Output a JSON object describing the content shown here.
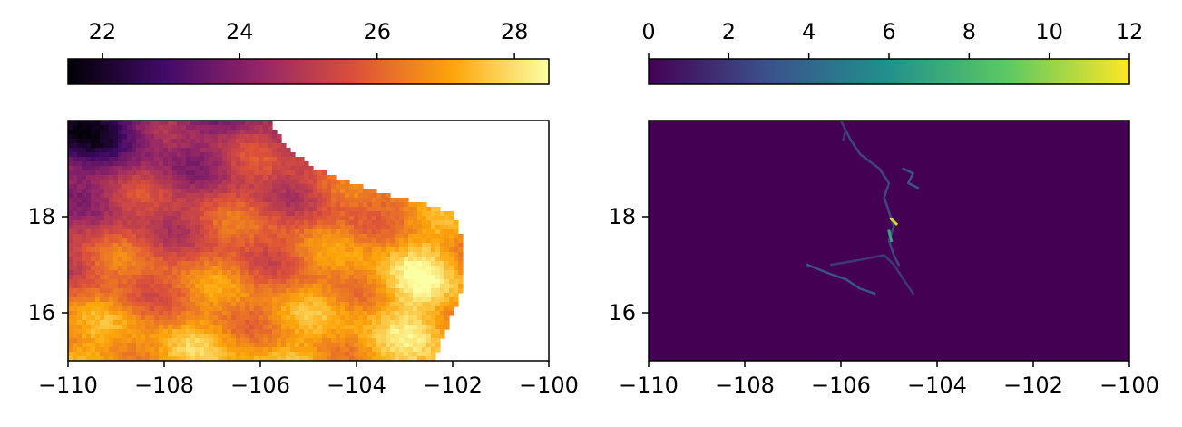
{
  "chart_data": [
    {
      "type": "heatmap",
      "title": "",
      "xlabel": "",
      "ylabel": "",
      "xlim": [
        -110,
        -100
      ],
      "ylim": [
        15,
        20
      ],
      "x_ticks": [
        -110,
        -108,
        -106,
        -104,
        -102,
        -100
      ],
      "x_tick_labels": [
        "−110",
        "−108",
        "−106",
        "−104",
        "−102",
        "−100"
      ],
      "y_ticks": [
        16,
        18
      ],
      "y_tick_labels": [
        "16",
        "18"
      ],
      "colormap": "inferno",
      "colormap_stops": [
        "#000004",
        "#420a68",
        "#932667",
        "#dd513a",
        "#fca50a",
        "#fcffa4"
      ],
      "missing_color": "#ffffff",
      "colorbar": {
        "placement": "top",
        "range": [
          21.5,
          28.5
        ],
        "ticks": [
          22,
          24,
          26,
          28
        ],
        "tick_labels": [
          "22",
          "24",
          "26",
          "28"
        ]
      },
      "approx_field": {
        "coast_lon_by_lat": [
          [
            20,
            -105.8
          ],
          [
            19.5,
            -105.5
          ],
          [
            19,
            -104.9
          ],
          [
            18.5,
            -103.5
          ],
          [
            18.1,
            -102.0
          ],
          [
            17.5,
            -101.8
          ],
          [
            17,
            -101.8
          ],
          [
            16.5,
            -101.8
          ],
          [
            16,
            -102.0
          ],
          [
            15.5,
            -102.2
          ],
          [
            15,
            -102.4
          ]
        ],
        "cold_core_lat": 19.8,
        "cold_core_lon": -109.8,
        "warm_core_lat": 16.8,
        "warm_core_lon": -102.9,
        "min_value": 21.6,
        "max_value": 28.5
      }
    },
    {
      "type": "heatmap",
      "title": "",
      "xlabel": "",
      "ylabel": "",
      "xlim": [
        -110,
        -100
      ],
      "ylim": [
        15,
        20
      ],
      "x_ticks": [
        -110,
        -108,
        -106,
        -104,
        -102,
        -100
      ],
      "x_tick_labels": [
        "−110",
        "−108",
        "−106",
        "−104",
        "−102",
        "−100"
      ],
      "y_ticks": [
        16,
        18
      ],
      "y_tick_labels": [
        "16",
        "18"
      ],
      "colormap": "viridis",
      "colormap_stops": [
        "#440154",
        "#3b528b",
        "#21918c",
        "#5ec962",
        "#fde725"
      ],
      "colorbar": {
        "placement": "top",
        "range": [
          0,
          12
        ],
        "ticks": [
          0,
          2,
          4,
          6,
          8,
          10,
          12
        ],
        "tick_labels": [
          "0",
          "2",
          "4",
          "6",
          "8",
          "10",
          "12"
        ]
      },
      "background_value": 0,
      "tracks": [
        {
          "values": 2.5,
          "points": [
            [
              -106.0,
              20.0
            ],
            [
              -105.8,
              19.6
            ],
            [
              -105.6,
              19.3
            ],
            [
              -105.2,
              19.0
            ],
            [
              -105.0,
              18.7
            ],
            [
              -105.1,
              18.4
            ],
            [
              -105.0,
              18.1
            ],
            [
              -104.9,
              17.8
            ],
            [
              -105.0,
              17.5
            ],
            [
              -104.9,
              17.2
            ],
            [
              -104.8,
              17.0
            ]
          ]
        },
        {
          "values": 3.0,
          "points": [
            [
              -106.7,
              17.0
            ],
            [
              -106.2,
              16.8
            ],
            [
              -105.9,
              16.7
            ],
            [
              -105.6,
              16.5
            ],
            [
              -105.3,
              16.4
            ]
          ]
        },
        {
          "values": 2.0,
          "points": [
            [
              -106.2,
              17.0
            ],
            [
              -105.6,
              17.1
            ],
            [
              -105.1,
              17.2
            ],
            [
              -104.9,
              17.0
            ]
          ]
        },
        {
          "values": 2.0,
          "points": [
            [
              -104.9,
              17.0
            ],
            [
              -104.7,
              16.7
            ],
            [
              -104.5,
              16.4
            ]
          ]
        },
        {
          "values": 3.0,
          "points": [
            [
              -104.7,
              19.0
            ],
            [
              -104.5,
              18.9
            ],
            [
              -104.6,
              18.7
            ],
            [
              -104.4,
              18.6
            ]
          ]
        },
        {
          "values": 2.0,
          "points": [
            [
              -106.0,
              20.0
            ],
            [
              -105.9,
              19.8
            ],
            [
              -105.95,
              19.6
            ]
          ]
        },
        {
          "values": 11.0,
          "points": [
            [
              -104.95,
              17.95
            ],
            [
              -104.85,
              17.85
            ]
          ]
        },
        {
          "values": 7.0,
          "points": [
            [
              -105.0,
              17.7
            ],
            [
              -104.95,
              17.5
            ]
          ]
        }
      ]
    }
  ]
}
